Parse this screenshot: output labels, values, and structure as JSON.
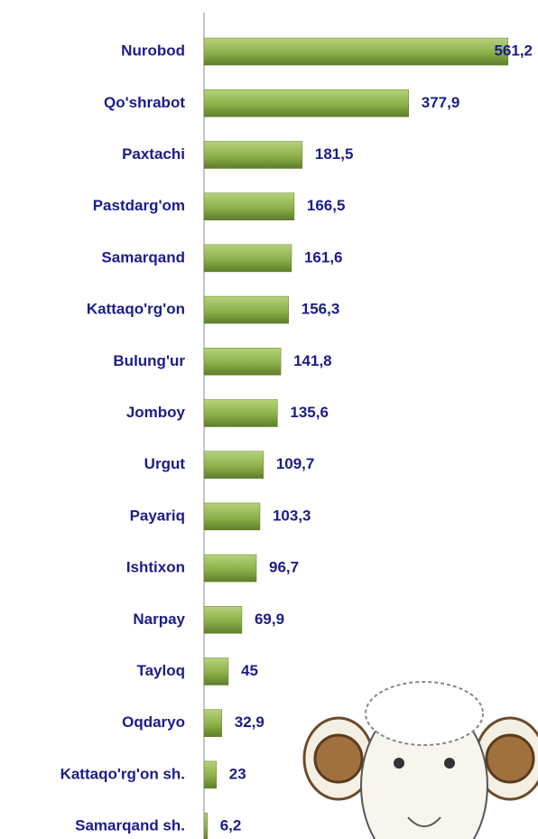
{
  "chart_data": {
    "type": "barh",
    "categories": [
      "Nurobod",
      "Qo'shrabot",
      "Paxtachi",
      "Pastdarg'om",
      "Samarqand",
      "Kattaqo'rg'on",
      "Bulung'ur",
      "Jomboy",
      "Urgut",
      "Payariq",
      "Ishtixon",
      "Narpay",
      "Tayloq",
      "Oqdaryo",
      "Kattaqo'rg'on sh.",
      "Samarqand sh."
    ],
    "values": [
      561.2,
      377.9,
      181.5,
      166.5,
      161.6,
      156.3,
      141.8,
      135.6,
      109.7,
      103.3,
      96.7,
      69.9,
      45,
      32.9,
      23,
      6.2
    ],
    "value_labels": [
      "561,2",
      "377,9",
      "181,5",
      "166,5",
      "161,6",
      "156,3",
      "141,8",
      "135,6",
      "109,7",
      "103,3",
      "96,7",
      "69,9",
      "45",
      "32,9",
      "23",
      "6,2"
    ],
    "color": "#8db04a",
    "xlim": [
      0,
      600
    ]
  }
}
